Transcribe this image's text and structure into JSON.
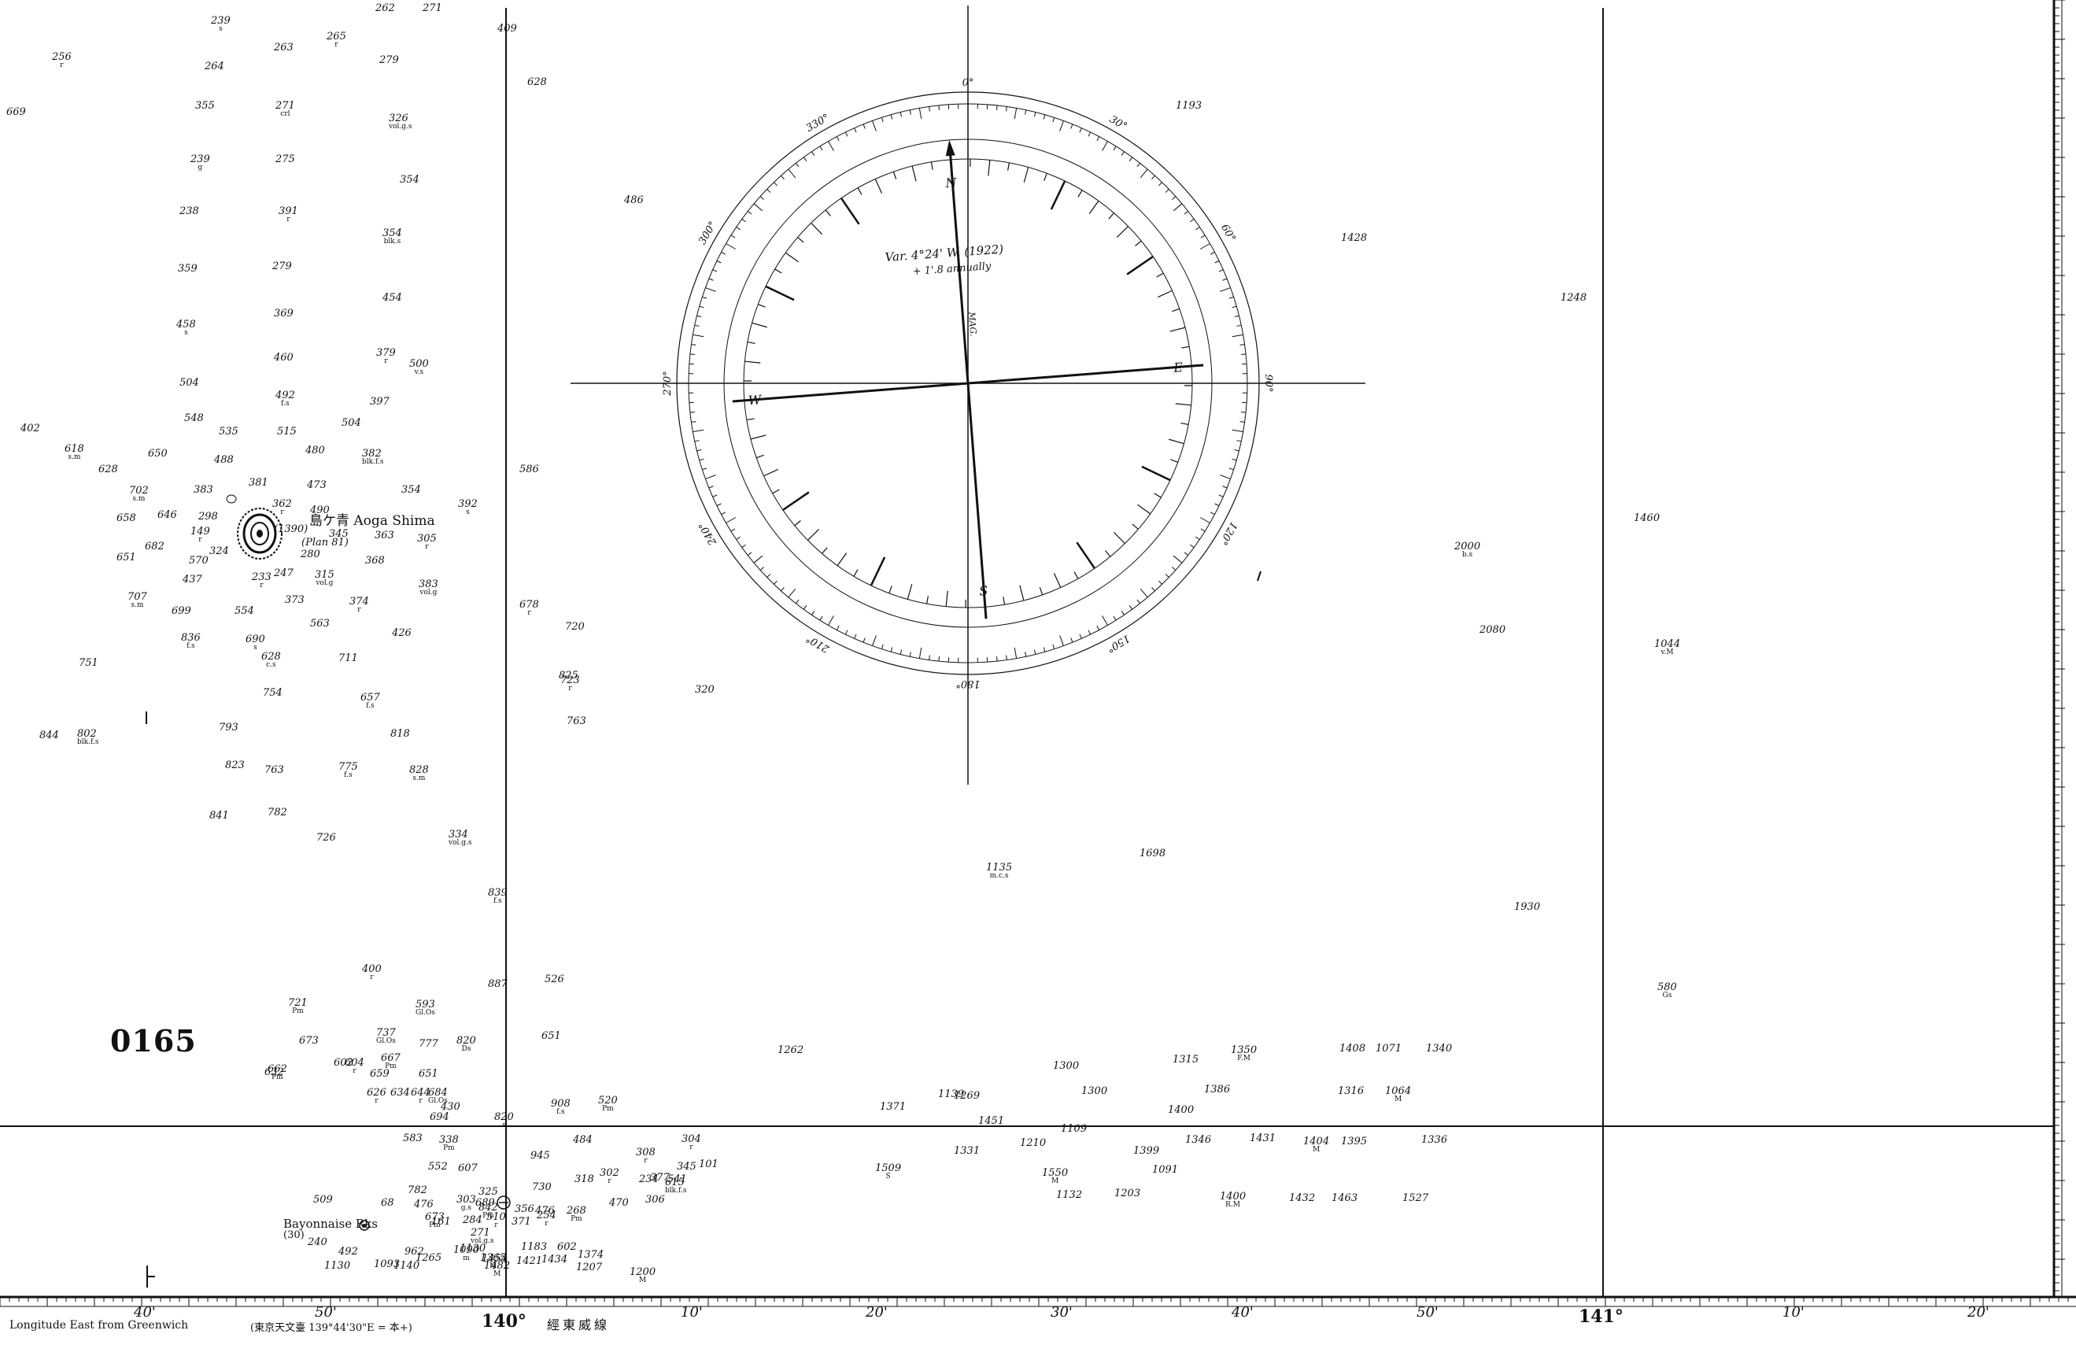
{
  "chart": {
    "number": "0165",
    "footer_longitude": "Longitude East from Greenwich",
    "footer_sub": "(東京天文臺 139°44'30\"E = 本+)",
    "meridian_jp": "經東威線",
    "degree_140": "140°",
    "degree_141": "141°",
    "minute_labels": [
      "40'",
      "50'",
      "10'",
      "20'",
      "30'",
      "40'",
      "50'",
      "10'",
      "20'"
    ]
  },
  "island": {
    "name": "島ケ青 Aoga Shima",
    "height": "(1390)",
    "plan_ref": "(Plan 81)"
  },
  "rock": {
    "name": "Bayonnaise Rks",
    "height": "(30)"
  },
  "compass": {
    "variation": "Var. 4°24' W. (1922)",
    "annual": "+ 1'.8 annually",
    "mag_label": "MAG.",
    "outer_labels": [
      "0°",
      "30°",
      "60°",
      "90°",
      "120°",
      "150°",
      "180°",
      "210°",
      "240°",
      "270°",
      "300°",
      "330°"
    ],
    "inner_cardinals": [
      "N",
      "E",
      "S",
      "W"
    ]
  },
  "soundings": [
    {
      "v": "239",
      "q": "s"
    },
    {
      "v": "265",
      "q": "r"
    },
    {
      "v": "262"
    },
    {
      "v": "271"
    },
    {
      "v": "256",
      "q": "r"
    },
    {
      "v": "263"
    },
    {
      "v": "279"
    },
    {
      "v": "264"
    },
    {
      "v": "669"
    },
    {
      "v": "355"
    },
    {
      "v": "271",
      "q": "crl"
    },
    {
      "v": "326",
      "q": "vol.g.s"
    },
    {
      "v": "239",
      "q": "g"
    },
    {
      "v": "275"
    },
    {
      "v": "354"
    },
    {
      "v": "238"
    },
    {
      "v": "391",
      "q": "r"
    },
    {
      "v": "354",
      "q": "blk.s"
    },
    {
      "v": "359"
    },
    {
      "v": "279"
    },
    {
      "v": "454"
    },
    {
      "v": "369"
    },
    {
      "v": "458",
      "q": "s"
    },
    {
      "v": "460"
    },
    {
      "v": "379",
      "q": "r"
    },
    {
      "v": "500",
      "q": "v.s"
    },
    {
      "v": "504"
    },
    {
      "v": "492",
      "q": "f.s"
    },
    {
      "v": "397"
    },
    {
      "v": "548"
    },
    {
      "v": "504"
    },
    {
      "v": "402"
    },
    {
      "v": "535"
    },
    {
      "v": "515"
    },
    {
      "v": "618",
      "q": "s.m"
    },
    {
      "v": "650"
    },
    {
      "v": "488"
    },
    {
      "v": "480"
    },
    {
      "v": "382",
      "q": "blk.f.s"
    },
    {
      "v": "628"
    },
    {
      "v": "383"
    },
    {
      "v": "381"
    },
    {
      "v": "473"
    },
    {
      "v": "354"
    },
    {
      "v": "702",
      "q": "s.m"
    },
    {
      "v": "362",
      "q": "r"
    },
    {
      "v": "149",
      "q": "r"
    },
    {
      "v": "392",
      "q": "s"
    },
    {
      "v": "658"
    },
    {
      "v": "646"
    },
    {
      "v": "298"
    },
    {
      "v": "490"
    },
    {
      "v": "682"
    },
    {
      "v": "345"
    },
    {
      "v": "363"
    },
    {
      "v": "305",
      "q": "r"
    },
    {
      "v": "651"
    },
    {
      "v": "570"
    },
    {
      "v": "324"
    },
    {
      "v": "280"
    },
    {
      "v": "368"
    },
    {
      "v": "437"
    },
    {
      "v": "233",
      "q": "r"
    },
    {
      "v": "247"
    },
    {
      "v": "315",
      "q": "vol.g"
    },
    {
      "v": "383",
      "q": "vol.g"
    },
    {
      "v": "707",
      "q": "s.m"
    },
    {
      "v": "373"
    },
    {
      "v": "374",
      "q": "r"
    },
    {
      "v": "699"
    },
    {
      "v": "554"
    },
    {
      "v": "563"
    },
    {
      "v": "836",
      "q": "f.s"
    },
    {
      "v": "690",
      "q": "s"
    },
    {
      "v": "426"
    },
    {
      "v": "751"
    },
    {
      "v": "628",
      "q": "c.s"
    },
    {
      "v": "711"
    },
    {
      "v": "802",
      "q": "blk.f.s"
    },
    {
      "v": "754"
    },
    {
      "v": "657",
      "q": "f.s"
    },
    {
      "v": "844"
    },
    {
      "v": "793"
    },
    {
      "v": "818"
    },
    {
      "v": "823"
    },
    {
      "v": "763"
    },
    {
      "v": "775",
      "q": "f.s"
    },
    {
      "v": "828",
      "q": "s.m"
    },
    {
      "v": "841"
    },
    {
      "v": "782"
    },
    {
      "v": "726"
    },
    {
      "v": "334",
      "q": "vol.g.s"
    },
    {
      "v": "409"
    },
    {
      "v": "628"
    },
    {
      "v": "486"
    },
    {
      "v": "586"
    },
    {
      "v": "678",
      "q": "r"
    },
    {
      "v": "720"
    },
    {
      "v": "723",
      "q": "r"
    },
    {
      "v": "763"
    },
    {
      "v": "839",
      "q": "f.s"
    },
    {
      "v": "825"
    },
    {
      "v": "320"
    },
    {
      "v": "1193"
    },
    {
      "v": "1428"
    },
    {
      "v": "1248"
    },
    {
      "v": "1460"
    },
    {
      "v": "2000",
      "q": "b.s"
    },
    {
      "v": "2080"
    },
    {
      "v": "1044",
      "q": "v.M"
    },
    {
      "v": "1135",
      "q": "m.c.s"
    },
    {
      "v": "1698"
    },
    {
      "v": "1930"
    },
    {
      "v": "580",
      "q": "Gs"
    },
    {
      "v": "400",
      "q": "r"
    },
    {
      "v": "721",
      "q": "Pm"
    },
    {
      "v": "593",
      "q": "Gl.Os"
    },
    {
      "v": "887"
    },
    {
      "v": "526"
    },
    {
      "v": "673"
    },
    {
      "v": "737",
      "q": "Gl.Os"
    },
    {
      "v": "777"
    },
    {
      "v": "820",
      "q": "Ds"
    },
    {
      "v": "651"
    },
    {
      "v": "602"
    },
    {
      "v": "604",
      "q": "r"
    },
    {
      "v": "662",
      "q": "Pm"
    },
    {
      "v": "667",
      "q": "Pm"
    },
    {
      "v": "632"
    },
    {
      "v": "659"
    },
    {
      "v": "651"
    },
    {
      "v": "626",
      "q": "r"
    },
    {
      "v": "634"
    },
    {
      "v": "644",
      "q": "r"
    },
    {
      "v": "684",
      "q": "Gl.Os"
    },
    {
      "v": "430"
    },
    {
      "v": "694"
    },
    {
      "v": "820",
      "q": "s"
    },
    {
      "v": "908",
      "q": "f.s"
    },
    {
      "v": "520",
      "q": "Pm"
    },
    {
      "v": "304",
      "q": "r"
    },
    {
      "v": "583"
    },
    {
      "v": "338",
      "q": "Pm"
    },
    {
      "v": "484"
    },
    {
      "v": "552"
    },
    {
      "v": "607"
    },
    {
      "v": "945"
    },
    {
      "v": "308",
      "q": "r"
    },
    {
      "v": "234"
    },
    {
      "v": "302",
      "q": "r"
    },
    {
      "v": "377"
    },
    {
      "v": "615",
      "q": "blk.f.s"
    },
    {
      "v": "730"
    },
    {
      "v": "318"
    },
    {
      "v": "541"
    },
    {
      "v": "68"
    },
    {
      "v": "476"
    },
    {
      "v": "689"
    },
    {
      "v": "842",
      "q": "Pm"
    },
    {
      "v": "782"
    },
    {
      "v": "325"
    },
    {
      "v": "345"
    },
    {
      "v": "101"
    },
    {
      "v": "509"
    },
    {
      "v": "303",
      "q": "g.s"
    },
    {
      "v": "510",
      "q": "r"
    },
    {
      "v": "476"
    },
    {
      "v": "268",
      "q": "Pm"
    },
    {
      "v": "470"
    },
    {
      "v": "306"
    },
    {
      "v": "673",
      "q": "Pm"
    },
    {
      "v": "284"
    },
    {
      "v": "356"
    },
    {
      "v": "254",
      "q": "r"
    },
    {
      "v": "240"
    },
    {
      "v": "161"
    },
    {
      "v": "271",
      "q": "vol.g.s"
    },
    {
      "v": "371"
    },
    {
      "v": "492"
    },
    {
      "v": "962"
    },
    {
      "v": "1090",
      "q": "m"
    },
    {
      "v": "1130"
    },
    {
      "v": "1183"
    },
    {
      "v": "602"
    },
    {
      "v": "1374"
    },
    {
      "v": "1454"
    },
    {
      "v": "1482",
      "q": "M"
    },
    {
      "v": "1093"
    },
    {
      "v": "1130"
    },
    {
      "v": "1140"
    },
    {
      "v": "1265"
    },
    {
      "v": "1365",
      "q": "M"
    },
    {
      "v": "1421"
    },
    {
      "v": "1434"
    },
    {
      "v": "1207"
    },
    {
      "v": "1200",
      "q": "M"
    },
    {
      "v": "1262"
    },
    {
      "v": "1269"
    },
    {
      "v": "1300"
    },
    {
      "v": "1315"
    },
    {
      "v": "1350",
      "q": "F.M"
    },
    {
      "v": "1408"
    },
    {
      "v": "1071"
    },
    {
      "v": "1340"
    },
    {
      "v": "1371"
    },
    {
      "v": "1139"
    },
    {
      "v": "1451"
    },
    {
      "v": "1300"
    },
    {
      "v": "1400"
    },
    {
      "v": "1386"
    },
    {
      "v": "1316"
    },
    {
      "v": "1064",
      "q": "M"
    },
    {
      "v": "1109"
    },
    {
      "v": "1210"
    },
    {
      "v": "1331"
    },
    {
      "v": "1399"
    },
    {
      "v": "1346"
    },
    {
      "v": "1431"
    },
    {
      "v": "1404",
      "q": "M"
    },
    {
      "v": "1395"
    },
    {
      "v": "1336"
    },
    {
      "v": "1509",
      "q": "S"
    },
    {
      "v": "1550",
      "q": "M"
    },
    {
      "v": "1091"
    },
    {
      "v": "1132"
    },
    {
      "v": "1203"
    },
    {
      "v": "1400",
      "q": "R.M"
    },
    {
      "v": "1432"
    },
    {
      "v": "1463"
    },
    {
      "v": "1527"
    }
  ]
}
